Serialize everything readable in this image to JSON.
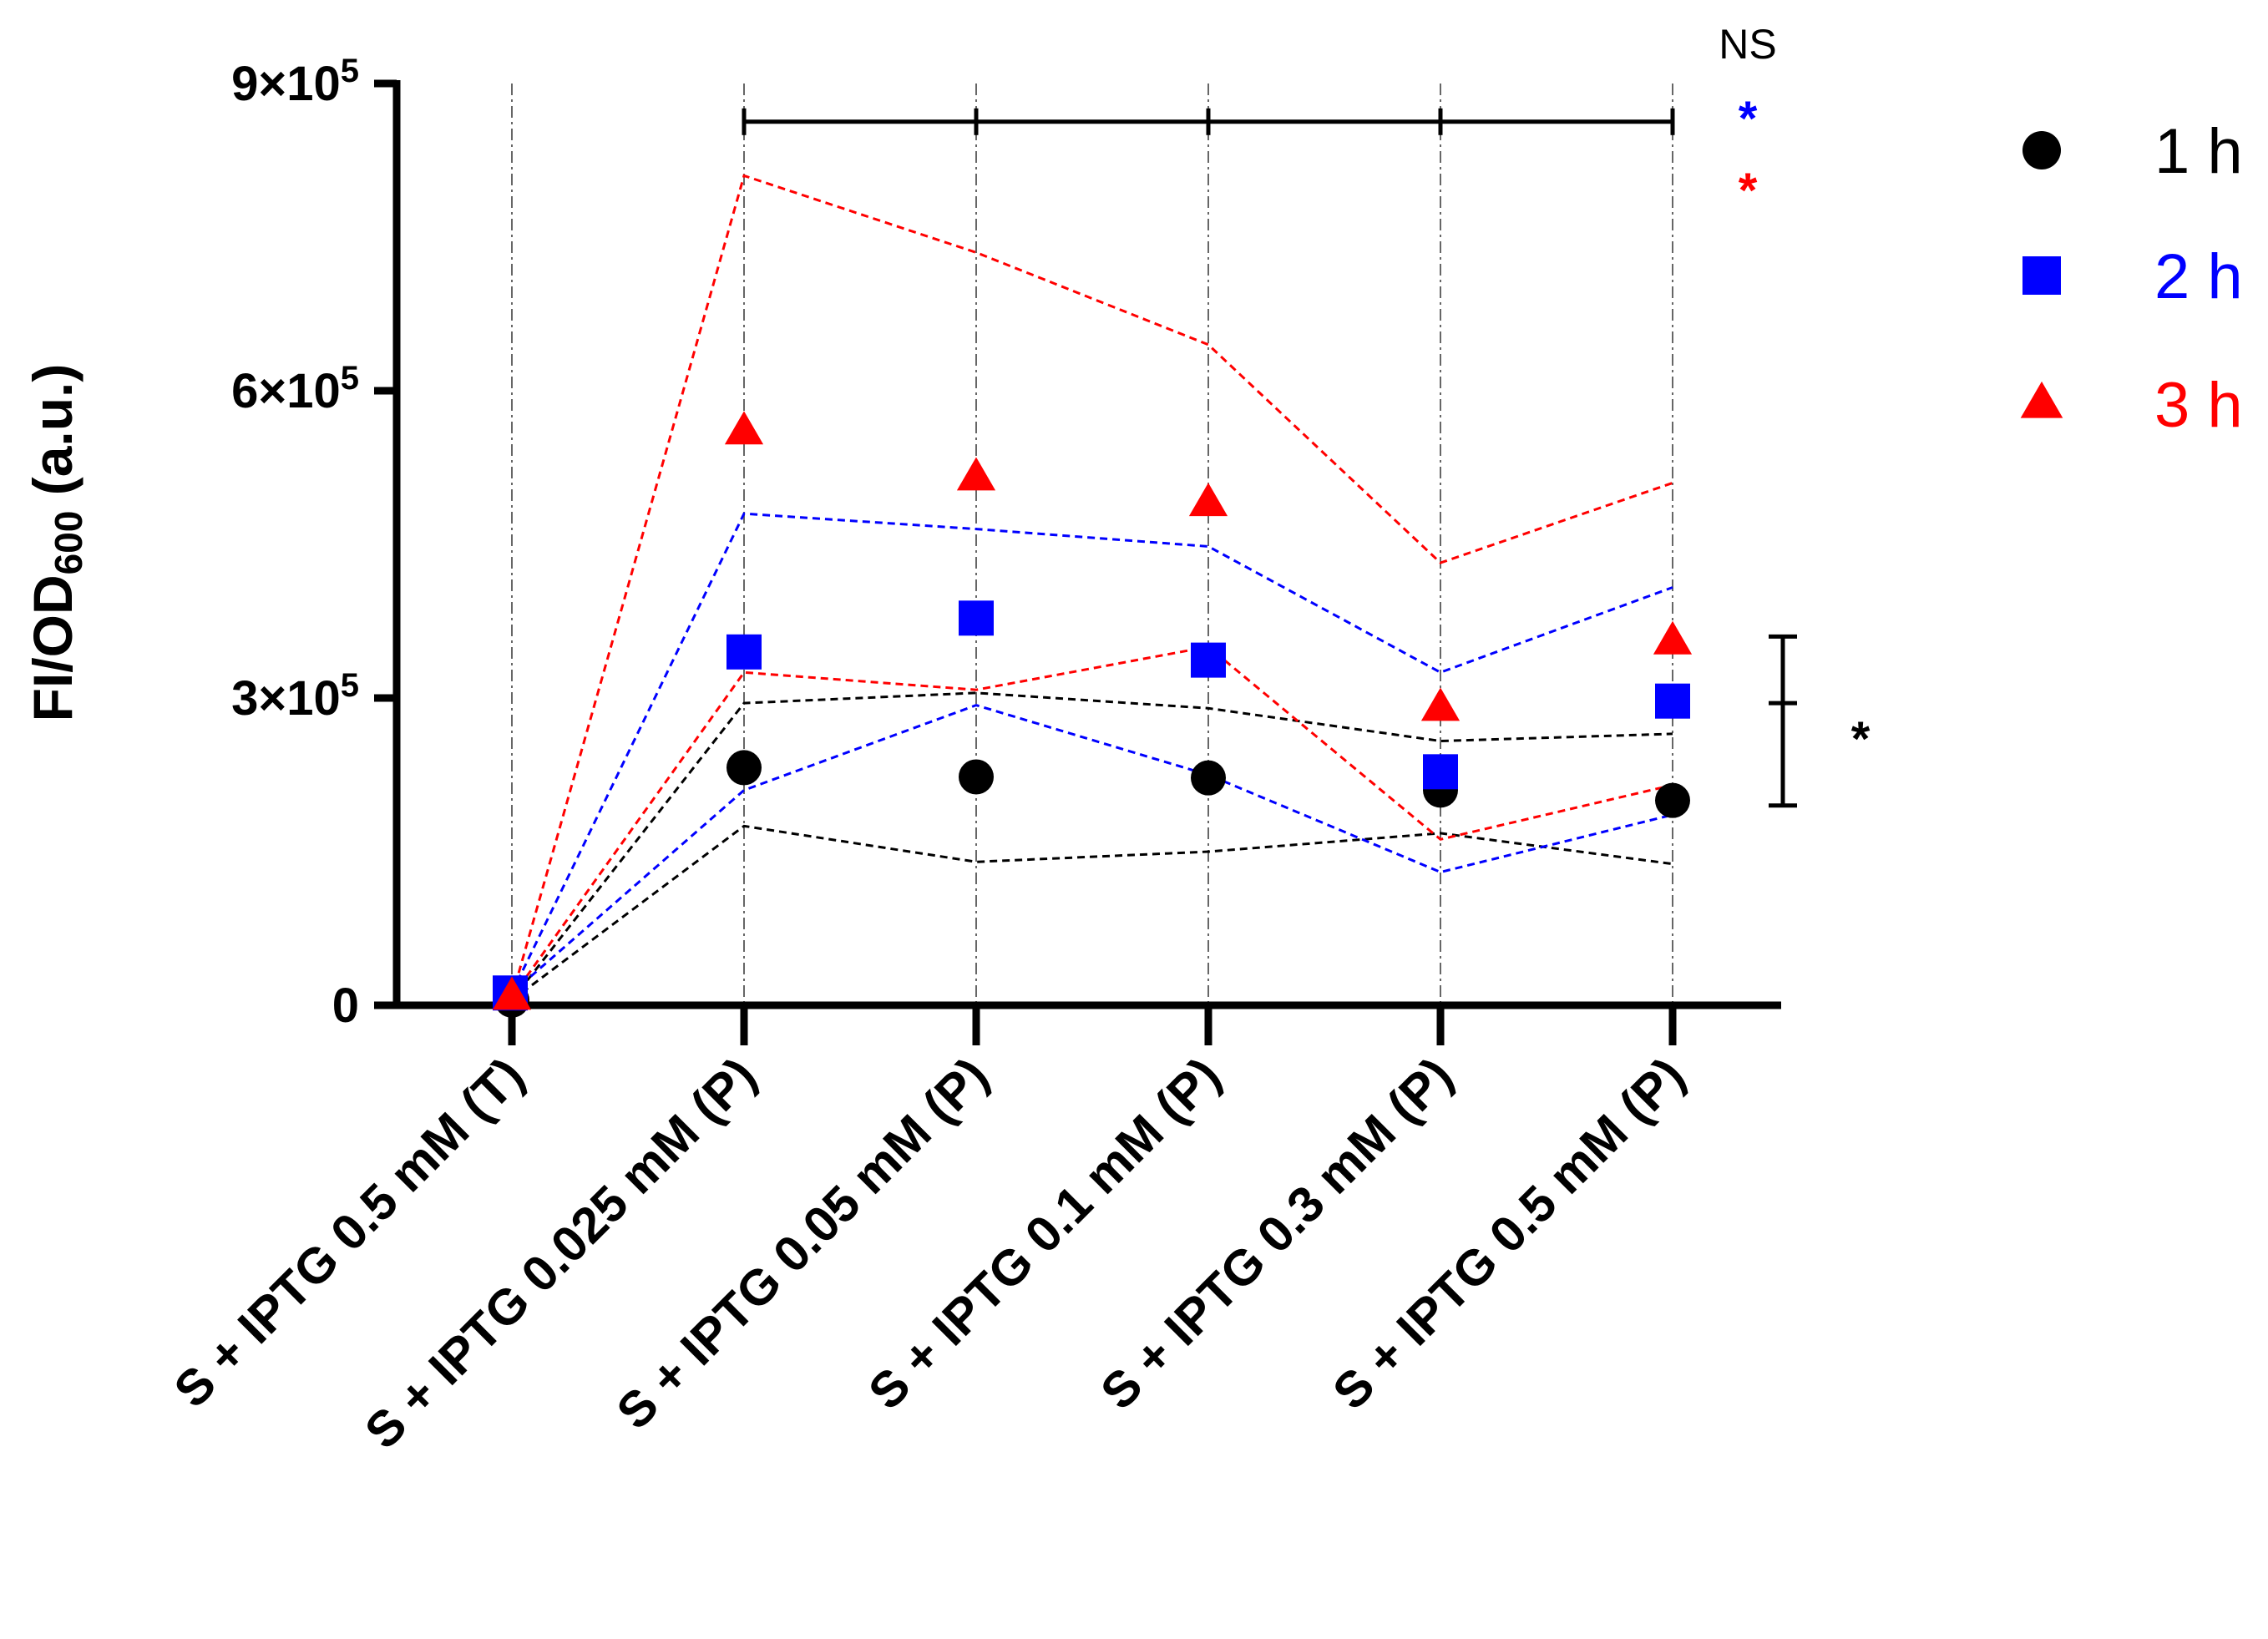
{
  "chart_data": {
    "type": "scatter",
    "title": "",
    "xlabel": "",
    "ylabel": "FI/OD600 (a.u.)",
    "ylabel_main": "FI/OD",
    "ylabel_sub": "600",
    "ylabel_unit": " (a.u.)",
    "ylim": [
      0,
      900000
    ],
    "yticks": [
      {
        "value": 0,
        "label": "0",
        "base": "0",
        "exp": ""
      },
      {
        "value": 300000,
        "label": "3×10^5",
        "base": "3×10",
        "exp": "5"
      },
      {
        "value": 600000,
        "label": "6×10^5",
        "base": "6×10",
        "exp": "5"
      },
      {
        "value": 900000,
        "label": "9×10^5",
        "base": "9×10",
        "exp": "5"
      }
    ],
    "categories": [
      "S + IPTG 0.5 mM (T)",
      "S + IPTG 0.025 mM (P)",
      "S + IPTG 0.05 mM (P)",
      "S + IPTG 0.1 mM (P)",
      "S + IPTG 0.3 mM (P)",
      "S + IPTG 0.5 mM (P)"
    ],
    "series": [
      {
        "name": "1 h",
        "color": "#000000",
        "marker": "circle",
        "values": [
          5000,
          232000,
          223000,
          222000,
          210000,
          200000
        ],
        "upper": [
          5000,
          295000,
          305000,
          290000,
          258000,
          265000
        ],
        "lower": [
          5000,
          175000,
          140000,
          150000,
          168000,
          138000
        ]
      },
      {
        "name": "2 h",
        "color": "#0000ff",
        "marker": "square",
        "values": [
          12000,
          345000,
          378000,
          337000,
          228000,
          297000
        ],
        "upper": [
          12000,
          480000,
          465000,
          448000,
          325000,
          408000
        ],
        "lower": [
          12000,
          210000,
          293000,
          225000,
          130000,
          186000
        ]
      },
      {
        "name": "3 h",
        "color": "#ff0000",
        "marker": "triangle",
        "values": [
          8000,
          560000,
          515000,
          490000,
          290000,
          355000
        ],
        "upper": [
          8000,
          810000,
          735000,
          645000,
          432000,
          510000
        ],
        "lower": [
          8000,
          325000,
          308000,
          350000,
          162000,
          215000
        ]
      }
    ],
    "legend": [
      {
        "label": "1 h",
        "color": "#000000",
        "marker": "circle"
      },
      {
        "label": "2 h",
        "color": "#0000ff",
        "marker": "square"
      },
      {
        "label": "3 h",
        "color": "#ff0000",
        "marker": "triangle"
      }
    ],
    "legend_position": "right",
    "comparison_bracket": {
      "y": 870000,
      "from_category": 1,
      "to_category": 5,
      "labels": [
        {
          "text": "NS",
          "color": "#000000"
        },
        {
          "text": "*",
          "color": "#0000ff"
        },
        {
          "text": "*",
          "color": "#ff0000"
        }
      ]
    },
    "range_bracket": {
      "low": 195000,
      "mid": 295000,
      "high": 360000,
      "label": "*"
    }
  }
}
